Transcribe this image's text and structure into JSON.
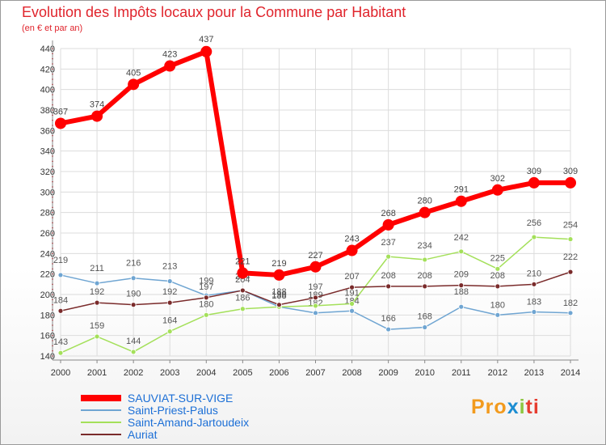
{
  "chart_data": {
    "type": "line",
    "title": "Evolution des Impôts locaux pour la Commune par Habitant",
    "subtitle": "(en € et par an)",
    "x": [
      2000,
      2001,
      2002,
      2003,
      2004,
      2005,
      2006,
      2007,
      2008,
      2009,
      2010,
      2011,
      2012,
      2013,
      2014
    ],
    "ylim": [
      140,
      440
    ],
    "yticks": [
      140,
      160,
      180,
      200,
      220,
      240,
      260,
      280,
      300,
      320,
      340,
      360,
      380,
      400,
      420,
      440
    ],
    "grid": true,
    "legend_position": "bottom-left",
    "series": [
      {
        "name": "SAUVIAT-SUR-VIGE",
        "color": "#ff0000",
        "values": [
          367,
          374,
          405,
          423,
          437,
          221,
          219,
          227,
          243,
          268,
          280,
          291,
          302,
          309,
          309
        ]
      },
      {
        "name": "Saint-Priest-Palus",
        "color": "#6fa5d2",
        "values": [
          219,
          211,
          216,
          213,
          199,
          204,
          188,
          182,
          184,
          166,
          168,
          188,
          180,
          183,
          182
        ]
      },
      {
        "name": "Saint-Amand-Jartoudeix",
        "color": "#a4e05a",
        "values": [
          143,
          159,
          144,
          164,
          180,
          186,
          188,
          189,
          191,
          237,
          234,
          242,
          225,
          256,
          254
        ]
      },
      {
        "name": "Auriat",
        "color": "#7a2b2b",
        "values": [
          184,
          192,
          190,
          192,
          197,
          204,
          190,
          197,
          207,
          208,
          208,
          209,
          208,
          210,
          222
        ]
      }
    ]
  },
  "logo": {
    "letters": [
      "Pro",
      "x",
      "i",
      "ti"
    ]
  }
}
